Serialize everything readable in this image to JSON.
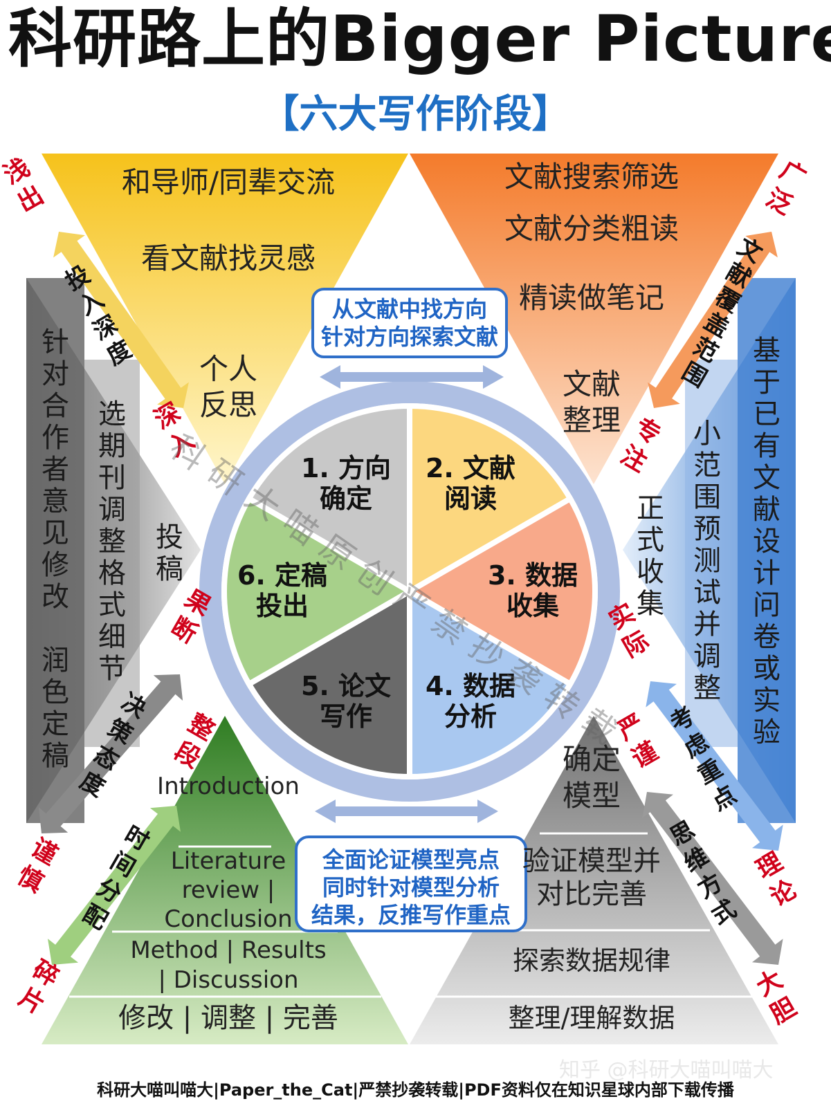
{
  "header": {
    "title": "科研路上的Bigger Picture",
    "subtitle": "【六大写作阶段】"
  },
  "stages": [
    {
      "number": "1.",
      "line1": "方向",
      "line2": "确定"
    },
    {
      "number": "2.",
      "line1": "文献",
      "line2": "阅读"
    },
    {
      "number": "3.",
      "line1": "数据",
      "line2": "收集"
    },
    {
      "number": "4.",
      "line1": "数据",
      "line2": "分析"
    },
    {
      "number": "5.",
      "line1": "论文",
      "line2": "写作"
    },
    {
      "number": "6.",
      "line1": "定稿",
      "line2": "投出"
    }
  ],
  "top_left_triangle": {
    "levels": [
      "和导师/同辈交流",
      "看文献找灵感",
      "个人",
      "反思"
    ]
  },
  "top_right_triangle": {
    "levels": [
      "文献搜索筛选",
      "文献分类粗读",
      "精读做笔记",
      "文献",
      "整理"
    ]
  },
  "left_panel": {
    "columns": [
      "针对合作者意见修改",
      "润色定稿",
      "选期刊调整格式细节",
      "投稿"
    ]
  },
  "right_panel": {
    "columns": [
      "正式收集",
      "小范围预测试并调整",
      "基于已有文献设计问卷或实验"
    ]
  },
  "bottom_left_pyramid": {
    "levels": [
      "Introduction",
      "Literature",
      "review |",
      "Conclusion",
      "Method | Results",
      "| Discussion",
      "修改 | 调整 | 完善"
    ]
  },
  "bottom_right_pyramid": {
    "levels": [
      "确定",
      "模型",
      "验证模型并",
      "对比完善",
      "探索数据规律",
      "整理/理解数据"
    ]
  },
  "callouts": {
    "top": [
      "从文献中找方向",
      "针对方向探索文献"
    ],
    "bottom": [
      "全面论证模型亮点",
      "同时针对模型分析",
      "结果，反推写作重点"
    ]
  },
  "arrow_labels": {
    "top_left": "投入深度",
    "top_right": "文献覆盖范围",
    "bottom_left_upper": "决策态度",
    "bottom_left_lower": "时间分配",
    "bottom_right_upper": "考虑重点",
    "bottom_right_lower": "思维方式"
  },
  "edge_labels": {
    "qianchu": "浅出",
    "shenru": "深入",
    "guangfan": "广泛",
    "zhuanzhu": "专注",
    "guoduan": "果断",
    "jinshen": "谨慎",
    "zhengduan": "整段",
    "suipian": "碎片",
    "shiji": "实际",
    "lilun": "理论",
    "yanjin": "严谨",
    "dadan": "大胆"
  },
  "watermark_diagonal": "科研大喵原创严禁抄袭转载",
  "watermark_corner": "知乎 @科研大喵叫喵大",
  "footer": "科研大喵叫喵大|Paper_the_Cat|严禁抄袭转载|PDF资料仅在知识星球内部下载传播",
  "colors": {
    "yellow_dark": "#f6c21b",
    "yellow_light": "#fdeaa0",
    "orange_dark": "#f47b2b",
    "orange_light": "#fcd2b3",
    "blue_dark": "#4a86d4",
    "blue_light": "#d2e3f6",
    "gray_dark": "#6b6b6b",
    "gray_light": "#d9d9d9",
    "green_dark": "#3e8e2b",
    "green_light": "#c7e0b0",
    "red_text": "#d0021b",
    "title_blue": "#1e6fc4"
  }
}
